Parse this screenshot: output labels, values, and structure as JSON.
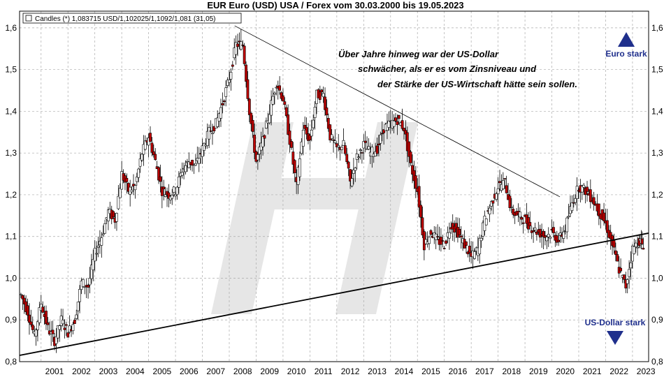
{
  "chart_data": {
    "type": "candlestick",
    "title": "EUR Euro (USD) USA / Forex vom 30.03.2000 bis 19.05.2023",
    "legend": {
      "label": "Candles (*) 1,083715 USD/1,102025/1,1092/1,081 (31,05)",
      "position": "top-left"
    },
    "y_ticks": [
      "0,8",
      "0,9",
      "1,0",
      "1,1",
      "1,2",
      "1,3",
      "1,4",
      "1,5",
      "1,6"
    ],
    "ylim": [
      0.8,
      1.64
    ],
    "x_ticks": [
      "2001",
      "2002",
      "2003",
      "2004",
      "2005",
      "2006",
      "2007",
      "2008",
      "2009",
      "2010",
      "2011",
      "2012",
      "2013",
      "2014",
      "2015",
      "2016",
      "2017",
      "2018",
      "2019",
      "2020",
      "2021",
      "2022",
      "2023"
    ],
    "xlim": [
      2000.2,
      2023.6
    ],
    "grid": true,
    "axes_right": true,
    "up_color": "#ffffff",
    "down_color": "#c00000",
    "series": [
      {
        "points": [
          [
            2000.25,
            0.96
          ],
          [
            2000.5,
            0.92
          ],
          [
            2000.75,
            0.86
          ],
          [
            2001.0,
            0.94
          ],
          [
            2001.25,
            0.88
          ],
          [
            2001.5,
            0.85
          ],
          [
            2001.75,
            0.9
          ],
          [
            2002.0,
            0.87
          ],
          [
            2002.25,
            0.9
          ],
          [
            2002.5,
            0.99
          ],
          [
            2002.75,
            0.98
          ],
          [
            2003.0,
            1.06
          ],
          [
            2003.25,
            1.1
          ],
          [
            2003.5,
            1.16
          ],
          [
            2003.75,
            1.14
          ],
          [
            2004.0,
            1.25
          ],
          [
            2004.25,
            1.21
          ],
          [
            2004.5,
            1.22
          ],
          [
            2004.75,
            1.3
          ],
          [
            2005.0,
            1.34
          ],
          [
            2005.25,
            1.28
          ],
          [
            2005.5,
            1.21
          ],
          [
            2005.75,
            1.2
          ],
          [
            2006.0,
            1.21
          ],
          [
            2006.25,
            1.26
          ],
          [
            2006.5,
            1.28
          ],
          [
            2006.75,
            1.27
          ],
          [
            2007.0,
            1.31
          ],
          [
            2007.25,
            1.35
          ],
          [
            2007.5,
            1.37
          ],
          [
            2007.75,
            1.42
          ],
          [
            2008.0,
            1.48
          ],
          [
            2008.25,
            1.56
          ],
          [
            2008.5,
            1.56
          ],
          [
            2008.75,
            1.4
          ],
          [
            2009.0,
            1.28
          ],
          [
            2009.25,
            1.33
          ],
          [
            2009.5,
            1.4
          ],
          [
            2009.75,
            1.47
          ],
          [
            2010.0,
            1.43
          ],
          [
            2010.25,
            1.33
          ],
          [
            2010.5,
            1.22
          ],
          [
            2010.75,
            1.36
          ],
          [
            2011.0,
            1.33
          ],
          [
            2011.25,
            1.44
          ],
          [
            2011.5,
            1.44
          ],
          [
            2011.75,
            1.34
          ],
          [
            2012.0,
            1.31
          ],
          [
            2012.25,
            1.32
          ],
          [
            2012.5,
            1.23
          ],
          [
            2012.75,
            1.29
          ],
          [
            2013.0,
            1.32
          ],
          [
            2013.25,
            1.3
          ],
          [
            2013.5,
            1.31
          ],
          [
            2013.75,
            1.36
          ],
          [
            2014.0,
            1.37
          ],
          [
            2014.25,
            1.38
          ],
          [
            2014.5,
            1.36
          ],
          [
            2014.75,
            1.27
          ],
          [
            2015.0,
            1.21
          ],
          [
            2015.25,
            1.08
          ],
          [
            2015.5,
            1.11
          ],
          [
            2015.75,
            1.09
          ],
          [
            2016.0,
            1.08
          ],
          [
            2016.25,
            1.13
          ],
          [
            2016.5,
            1.11
          ],
          [
            2016.75,
            1.08
          ],
          [
            2017.0,
            1.05
          ],
          [
            2017.25,
            1.07
          ],
          [
            2017.5,
            1.14
          ],
          [
            2017.75,
            1.18
          ],
          [
            2018.0,
            1.22
          ],
          [
            2018.25,
            1.23
          ],
          [
            2018.5,
            1.16
          ],
          [
            2018.75,
            1.15
          ],
          [
            2019.0,
            1.14
          ],
          [
            2019.25,
            1.12
          ],
          [
            2019.5,
            1.11
          ],
          [
            2019.75,
            1.1
          ],
          [
            2020.0,
            1.11
          ],
          [
            2020.25,
            1.09
          ],
          [
            2020.5,
            1.12
          ],
          [
            2020.75,
            1.18
          ],
          [
            2021.0,
            1.22
          ],
          [
            2021.25,
            1.21
          ],
          [
            2021.5,
            1.19
          ],
          [
            2021.75,
            1.16
          ],
          [
            2022.0,
            1.13
          ],
          [
            2022.25,
            1.08
          ],
          [
            2022.5,
            1.02
          ],
          [
            2022.75,
            0.98
          ],
          [
            2023.0,
            1.07
          ],
          [
            2023.25,
            1.09
          ],
          [
            2023.4,
            1.08
          ]
        ]
      }
    ],
    "trendlines": [
      {
        "from": [
          2000.2,
          0.815
        ],
        "to": [
          2023.6,
          1.108
        ],
        "style": "bold"
      },
      {
        "from": [
          2008.2,
          1.605
        ],
        "to": [
          2020.3,
          1.195
        ],
        "style": "thin"
      }
    ],
    "annotations": {
      "note_lines": [
        "Über Jahre hinweg war der US-Dollar",
        "schwächer, als er es vom Zinsniveau und",
        "der Stärke der US-Wirtschaft hätte sein sollen."
      ],
      "euro_strong": "Euro stark",
      "usd_strong": "US-Dollar stark"
    },
    "colors": {
      "accent": "#1f2f8c",
      "watermark": "#e6e6e6"
    }
  }
}
